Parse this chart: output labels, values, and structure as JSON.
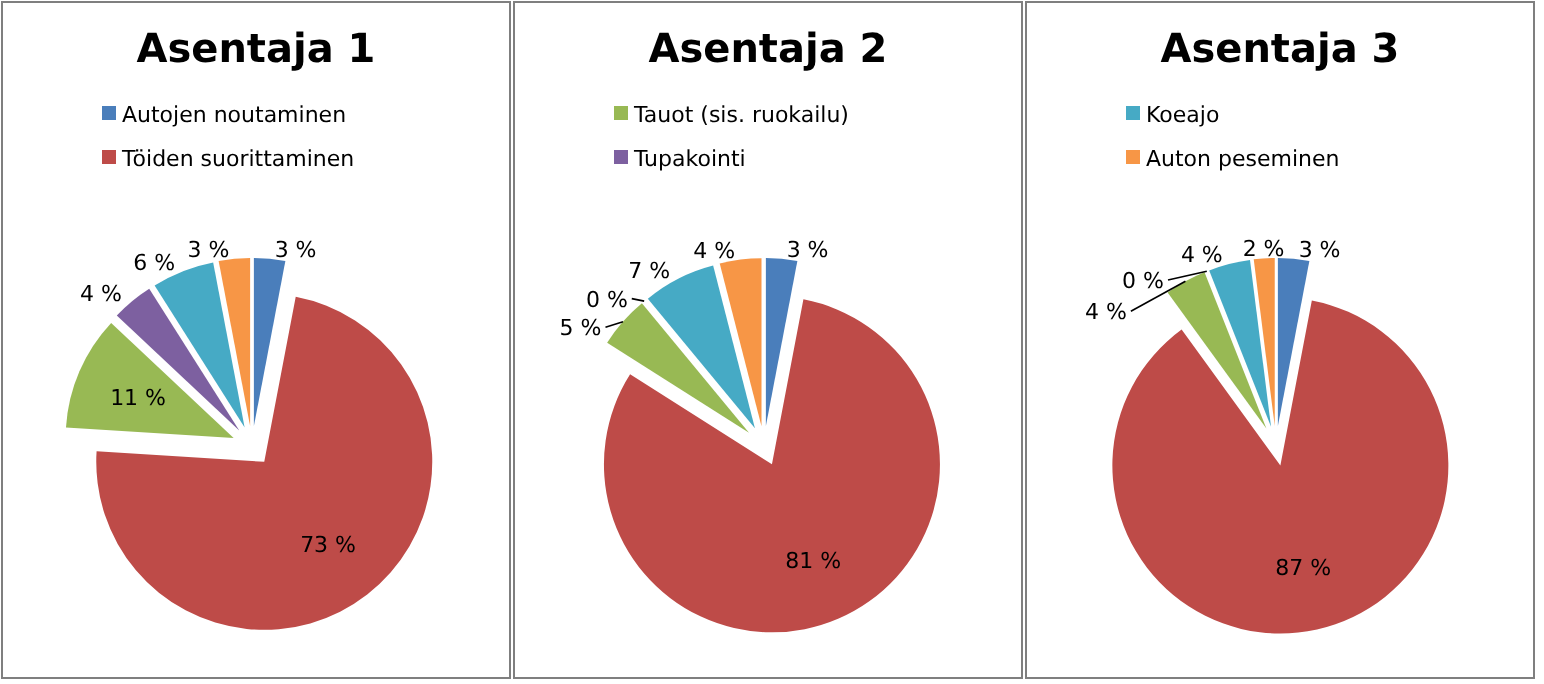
{
  "chart_data": [
    {
      "type": "pie",
      "title": "Asentaja 1",
      "legend": "top",
      "categories": [
        "Autojen noutaminen",
        "Töiden suorittaminen",
        null,
        null,
        null,
        null
      ],
      "values": [
        3,
        73,
        11,
        4,
        6,
        3
      ],
      "value_labels": [
        "3 %",
        "73 %",
        "11 %",
        "4 %",
        "6 %",
        "3 %"
      ],
      "colors": [
        "#4a7ebb",
        "#be4b48",
        "#98b954",
        "#7d60a0",
        "#46aac5",
        "#f79646"
      ]
    },
    {
      "type": "pie",
      "title": "Asentaja 2",
      "legend": "top",
      "categories": [
        null,
        null,
        "Tauot (sis. ruokailu)",
        "Tupakointi",
        null,
        null
      ],
      "values": [
        3,
        81,
        5,
        0,
        7,
        4
      ],
      "value_labels": [
        "3 %",
        "81 %",
        "5 %",
        "0 %",
        "7 %",
        "4 %"
      ],
      "colors": [
        "#4a7ebb",
        "#be4b48",
        "#98b954",
        "#7d60a0",
        "#46aac5",
        "#f79646"
      ]
    },
    {
      "type": "pie",
      "title": "Asentaja 3",
      "legend": "top",
      "categories": [
        null,
        null,
        null,
        null,
        "Koeajo",
        "Auton peseminen"
      ],
      "values": [
        3,
        87,
        4,
        0,
        4,
        2
      ],
      "value_labels": [
        "3 %",
        "87 %",
        "4 %",
        "0 %",
        "4 %",
        "2 %"
      ],
      "colors": [
        "#4a7ebb",
        "#be4b48",
        "#98b954",
        "#7d60a0",
        "#46aac5",
        "#f79646"
      ]
    }
  ]
}
